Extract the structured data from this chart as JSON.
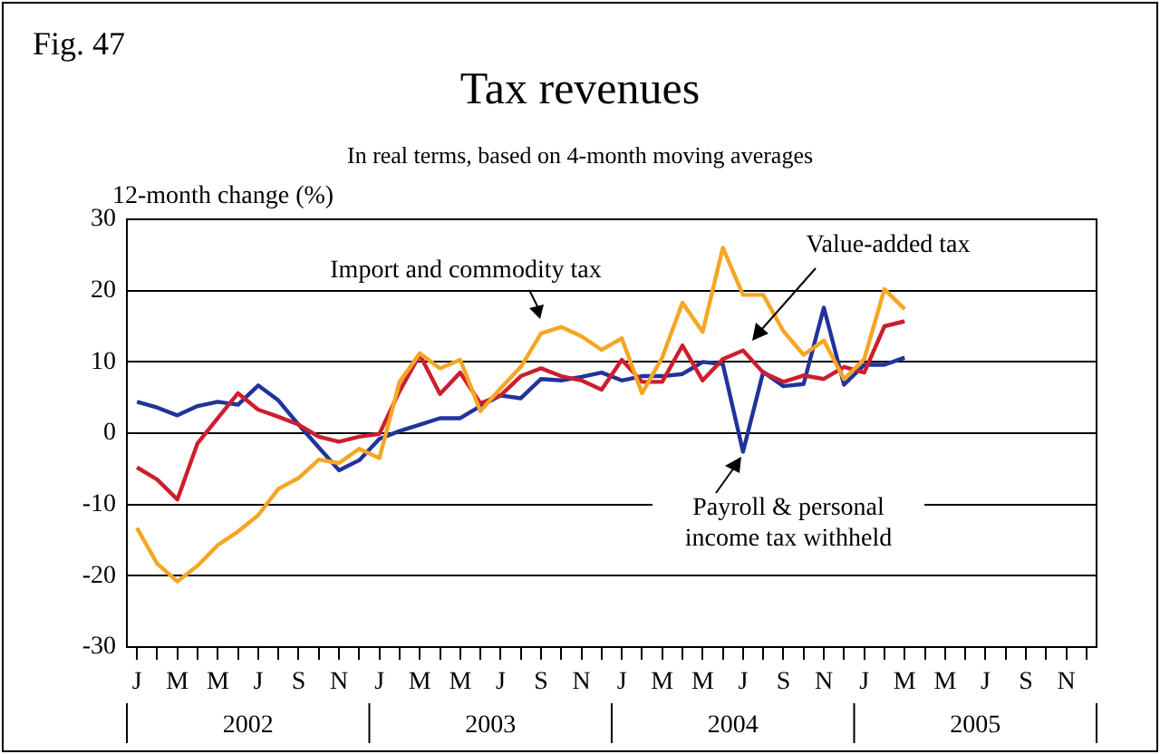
{
  "chart_data": {
    "type": "line",
    "title": "Tax revenues",
    "subtitle": "In real terms, based on 4-month moving averages",
    "ylabel": "12-month change (%)",
    "categories": [
      "J",
      null,
      "M",
      null,
      "M",
      null,
      "J",
      null,
      "S",
      null,
      "N",
      null,
      "J",
      null,
      "M",
      null,
      "M",
      null,
      "J",
      null,
      "S",
      null,
      "N",
      null,
      "J",
      null,
      "M",
      null,
      "M",
      null,
      "J",
      null,
      "S",
      null,
      "N",
      null,
      "J",
      null,
      "M",
      null,
      "M",
      null,
      "J",
      null,
      "S",
      null,
      "N",
      null
    ],
    "series": [
      {
        "name": "Import and commodity tax",
        "color": "#f5a623",
        "values": [
          -13.3,
          -18.3,
          -20.8,
          -18.6,
          -15.7,
          -13.8,
          -11.5,
          -7.8,
          -6.3,
          -3.7,
          -4.2,
          -2.2,
          -3.5,
          7.2,
          11.2,
          9.1,
          10.3,
          3.1,
          6.3,
          9.3,
          14.0,
          14.9,
          13.6,
          11.7,
          13.3,
          5.6,
          10.6,
          18.3,
          14.2,
          26.0,
          19.4,
          19.4,
          14.3,
          11.0,
          13.0,
          7.6,
          10.4,
          20.2,
          17.4,
          null,
          null,
          null,
          null,
          null,
          null,
          null,
          null,
          null
        ]
      },
      {
        "name": "Value-added tax",
        "color": "#cc1f2e",
        "values": [
          -4.8,
          -6.5,
          -9.3,
          -1.4,
          2.1,
          5.6,
          3.3,
          2.3,
          1.2,
          -0.5,
          -1.2,
          -0.5,
          -0.1,
          5.9,
          11.0,
          5.5,
          8.5,
          4.2,
          5.3,
          8.0,
          9.1,
          8.0,
          7.4,
          6.1,
          10.3,
          7.2,
          7.2,
          12.3,
          7.4,
          10.4,
          11.6,
          8.5,
          7.2,
          8.1,
          7.6,
          9.3,
          8.5,
          15.0,
          15.7,
          null,
          null,
          null,
          null,
          null,
          null,
          null,
          null,
          null
        ]
      },
      {
        "name": "Payroll & personal income tax withheld",
        "color": "#22339a",
        "values": [
          4.4,
          3.6,
          2.5,
          3.8,
          4.4,
          4.0,
          6.7,
          4.6,
          1.2,
          -2.0,
          -5.2,
          -3.8,
          -0.8,
          0.3,
          1.2,
          2.1,
          2.1,
          3.8,
          5.3,
          4.9,
          7.6,
          7.4,
          7.9,
          8.5,
          7.4,
          8.0,
          8.0,
          8.3,
          10.0,
          9.7,
          -2.6,
          8.6,
          6.6,
          6.9,
          17.6,
          6.8,
          9.6,
          9.6,
          10.6,
          null,
          null,
          null,
          null,
          null,
          null,
          null,
          null,
          null
        ]
      }
    ],
    "ylim": [
      -30,
      30
    ],
    "yticks": [
      -30,
      -20,
      -10,
      0,
      10,
      20,
      30
    ],
    "grid": "y",
    "legend": false,
    "marker": "none",
    "line_style": "solid",
    "annotations": [
      "Fig. 47",
      "2002",
      "2003",
      "2004",
      "2005"
    ]
  }
}
